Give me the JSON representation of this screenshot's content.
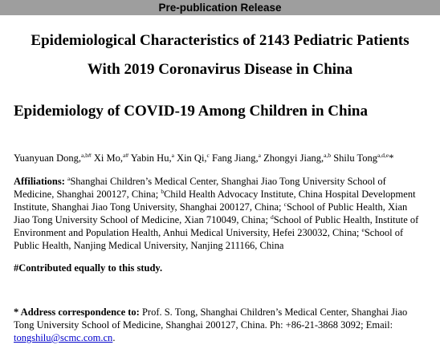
{
  "banner": "Pre-publication Release",
  "title_line1": "Epidemiological Characteristics of 2143 Pediatric Patients",
  "title_line2": "With 2019 Coronavirus Disease in China",
  "short_title": "Epidemiology of COVID-19 Among Children in China",
  "authors": [
    {
      "name": "Yuanyuan Dong,",
      "sup": "a,b#"
    },
    {
      "name": " Xi Mo,",
      "sup": "a#"
    },
    {
      "name": " Yabin Hu,",
      "sup": "a"
    },
    {
      "name": " Xin Qi,",
      "sup": "c"
    },
    {
      "name": " Fang Jiang,",
      "sup": "a"
    },
    {
      "name": " Zhongyi Jiang,",
      "sup": "a,b"
    },
    {
      "name": " Shilu Tong",
      "sup": "a,d,e"
    },
    {
      "name": "*",
      "sup": ""
    }
  ],
  "affiliations": {
    "label": "Affiliations:",
    "items": [
      {
        "sup": "a",
        "text": "Shanghai Children’s Medical Center, Shanghai Jiao Tong University School of Medicine, Shanghai 200127, China; "
      },
      {
        "sup": "b",
        "text": "Child Health Advocacy Institute, China Hospital Development Institute, Shanghai Jiao Tong University, Shanghai 200127, China; "
      },
      {
        "sup": "c",
        "text": "School of Public Health, Xian Jiao Tong University School of Medicine, Xian 710049, China; "
      },
      {
        "sup": "d",
        "text": "School of Public Health, Institute of Environment and Population Health, Anhui Medical University, Hefei 230032, China; "
      },
      {
        "sup": "e",
        "text": "School of Public Health, Nanjing Medical University, Nanjing 211166, China"
      }
    ]
  },
  "contributed": "#Contributed equally to this study.",
  "correspondence": {
    "label": "* Address correspondence to:",
    "text": " Prof. S. Tong, Shanghai Children’s Medical Center, Shanghai Jiao Tong University School of Medicine, Shanghai 200127, China. Ph: +86-21-3868 3092; Email: ",
    "email": "tongshilu@scmc.com.cn",
    "end": "."
  }
}
